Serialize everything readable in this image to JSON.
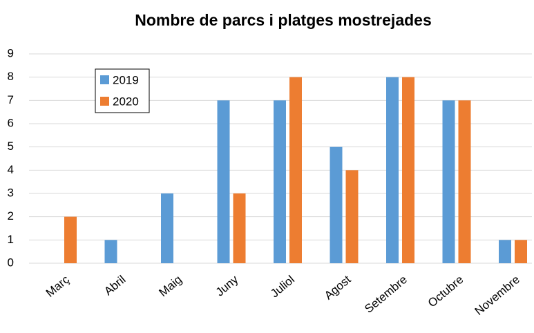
{
  "chart_data": {
    "type": "bar",
    "title": "Nombre de parcs i platges mostrejades",
    "categories": [
      "Març",
      "Abril",
      "Maig",
      "Juny",
      "Juliol",
      "Agost",
      "Setembre",
      "Octubre",
      "Novembre"
    ],
    "series": [
      {
        "name": "2019",
        "color": "#5b9bd5",
        "values": [
          0,
          1,
          3,
          7,
          7,
          5,
          8,
          7,
          1
        ]
      },
      {
        "name": "2020",
        "color": "#ed7d31",
        "values": [
          2,
          0,
          0,
          3,
          8,
          4,
          8,
          7,
          1
        ]
      }
    ],
    "ylim": [
      0,
      9
    ],
    "yticks": [
      0,
      1,
      2,
      3,
      4,
      5,
      6,
      7,
      8,
      9
    ],
    "grid": true,
    "legend": "upper left"
  }
}
